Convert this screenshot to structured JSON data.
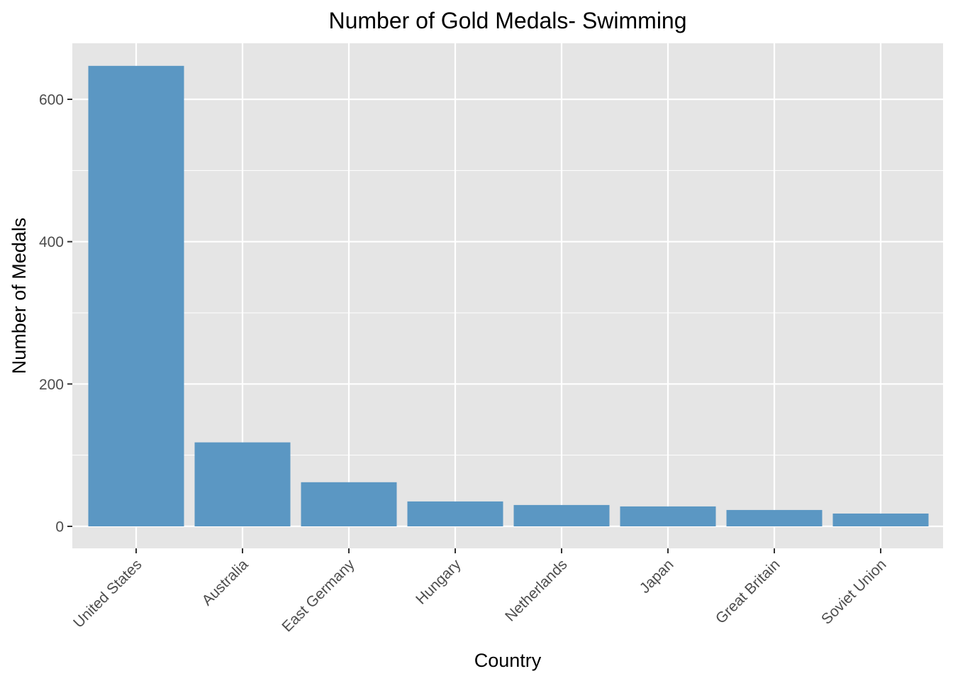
{
  "chart_data": {
    "type": "bar",
    "title": "Number of Gold Medals- Swimming",
    "xlabel": "Country",
    "ylabel": "Number of Medals",
    "categories": [
      "United States",
      "Australia",
      "East Germany",
      "Hungary",
      "Netherlands",
      "Japan",
      "Great Britain",
      "Soviet Union"
    ],
    "values": [
      647,
      118,
      62,
      35,
      30,
      28,
      23,
      18
    ],
    "ylim": [
      0,
      670
    ],
    "yticks": [
      0,
      200,
      400,
      600
    ],
    "ytick_labels": [
      "0",
      "200",
      "400",
      "600"
    ],
    "grid": true,
    "bar_color": "#5b97c3",
    "panel_background": "#e5e5e5",
    "grid_color": "#ffffff"
  }
}
